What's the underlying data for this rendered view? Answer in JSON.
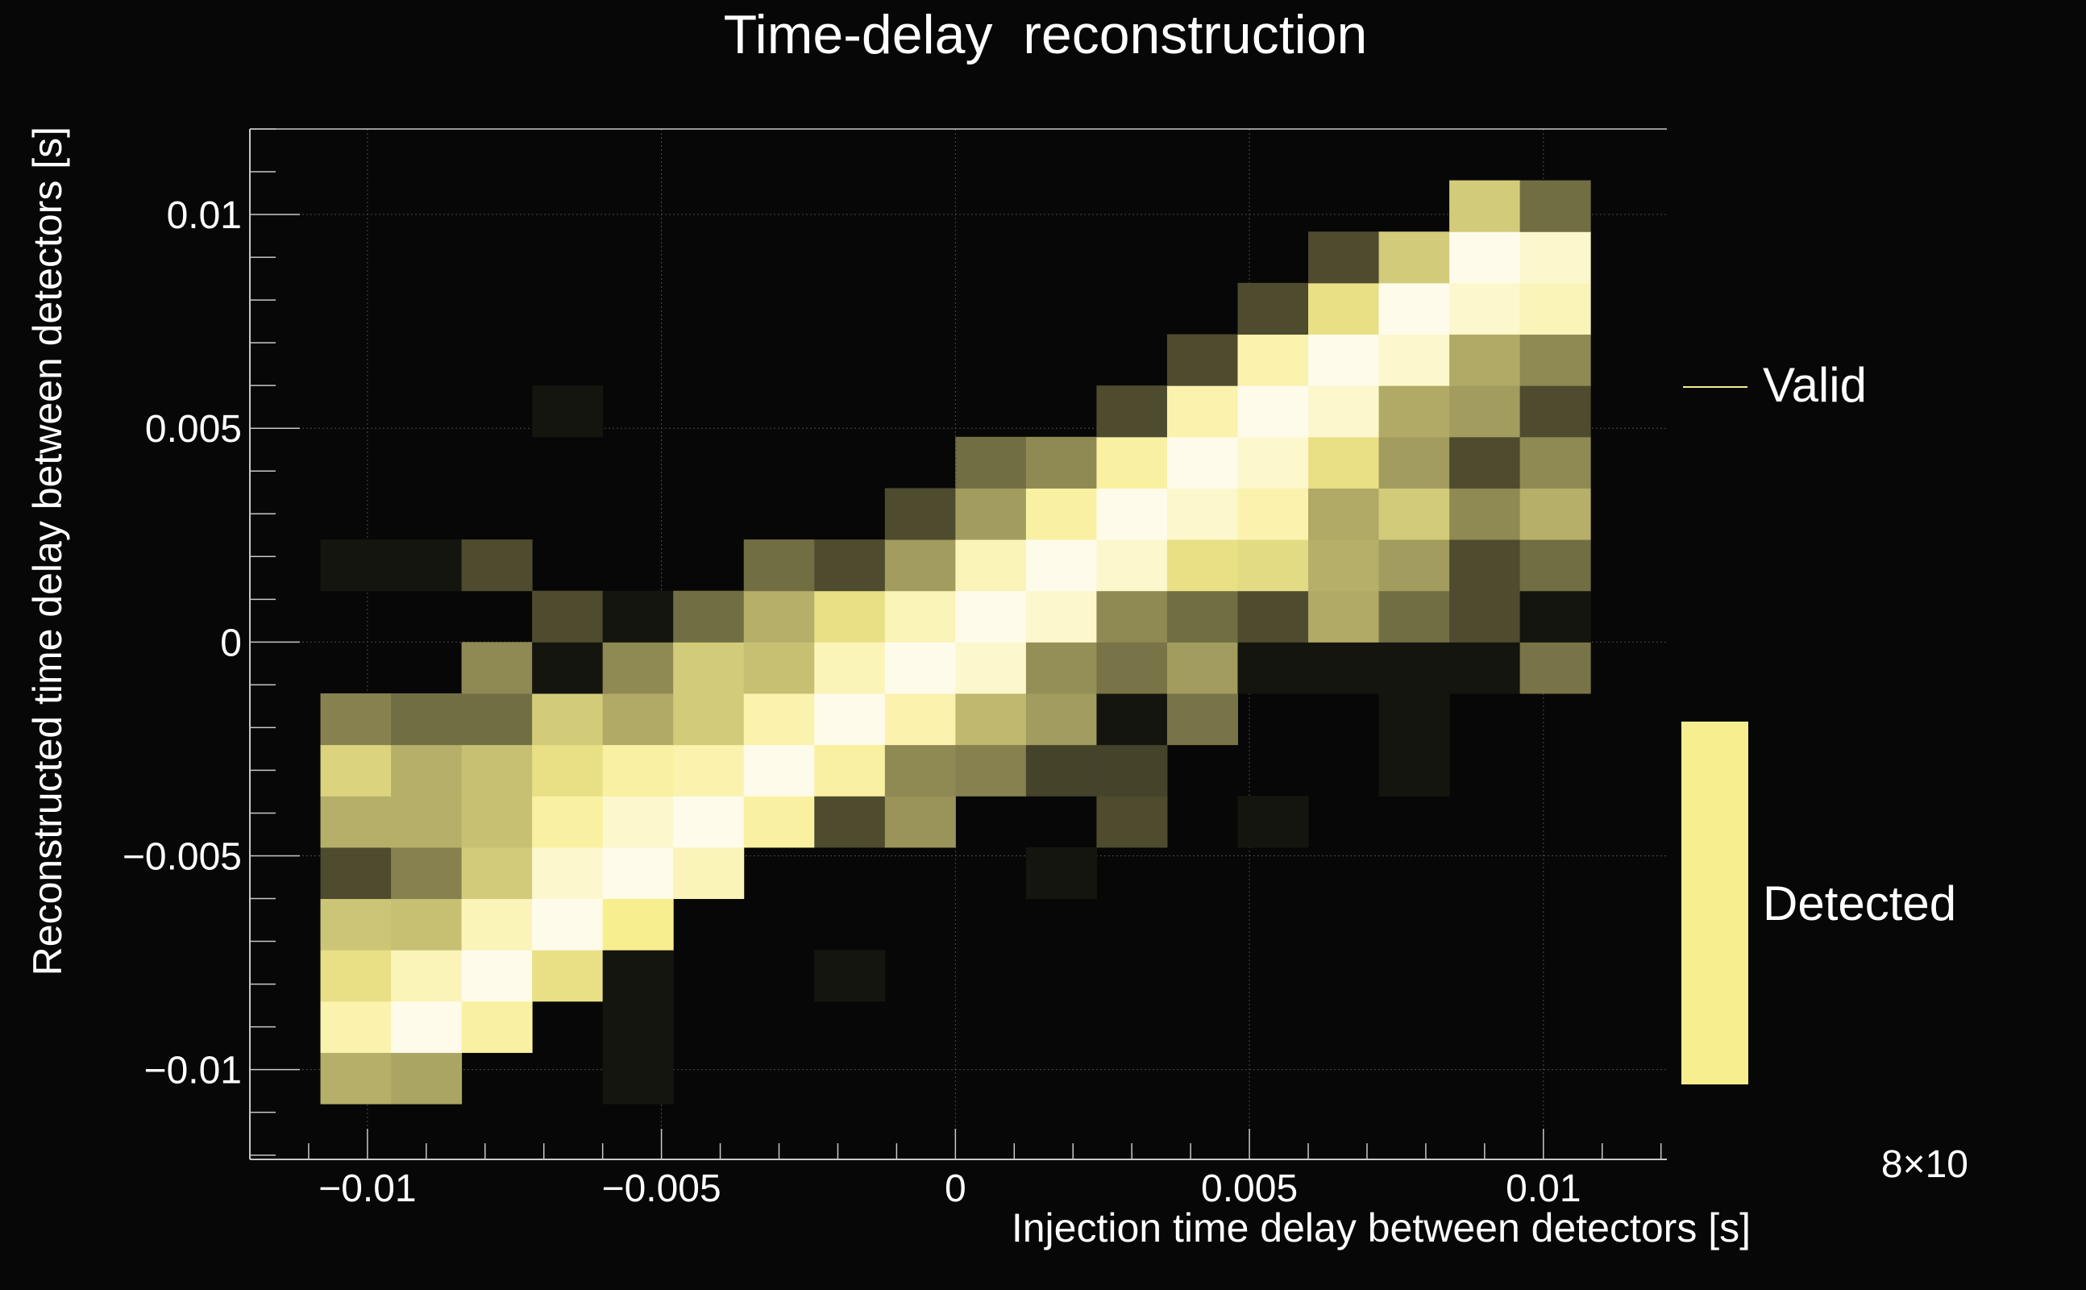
{
  "chart_data": {
    "type": "heatmap",
    "title": "Time-delay  reconstruction",
    "xlabel": "Injection time delay between detectors [s]",
    "ylabel": "Reconstructed time delay between detectors [s]",
    "xlim": [
      -0.012,
      0.0121
    ],
    "ylim": [
      -0.0121,
      0.012
    ],
    "x_ticks": [
      -0.01,
      -0.005,
      0,
      0.005,
      0.01
    ],
    "x_tick_labels": [
      "−0.01",
      "−0.005",
      "0",
      "0.005",
      "0.01"
    ],
    "y_ticks": [
      -0.01,
      -0.005,
      0,
      0.005,
      0.01
    ],
    "y_tick_labels": [
      "−0.01",
      "−0.005",
      "0",
      "0.005",
      "0.01"
    ],
    "grid": true,
    "x_bins": {
      "start": -0.0108,
      "width": 0.0012,
      "count": 18
    },
    "y_bins": {
      "start": -0.0108,
      "width": 0.0012,
      "count": 18
    },
    "z_values_by_row_from_bottom": [
      [
        0.62,
        0.58,
        0,
        0,
        0.05,
        0,
        0,
        0,
        0,
        0,
        0,
        0,
        0,
        0,
        0,
        0,
        0,
        0
      ],
      [
        0.9,
        1.0,
        0.88,
        0,
        0.05,
        0,
        0,
        0,
        0,
        0,
        0,
        0,
        0,
        0,
        0,
        0,
        0,
        0
      ],
      [
        0.8,
        0.92,
        1.0,
        0.8,
        0.05,
        0,
        0,
        0.05,
        0,
        0,
        0,
        0,
        0,
        0,
        0,
        0,
        0,
        0
      ],
      [
        0.7,
        0.68,
        0.92,
        1.0,
        0.85,
        0,
        0,
        0,
        0,
        0,
        0,
        0,
        0,
        0,
        0,
        0,
        0,
        0
      ],
      [
        0.25,
        0.45,
        0.72,
        0.95,
        1.0,
        0.92,
        0,
        0,
        0,
        0,
        0.05,
        0,
        0,
        0,
        0,
        0,
        0,
        0
      ],
      [
        0.62,
        0.62,
        0.68,
        0.88,
        0.95,
        1.0,
        0.88,
        0.25,
        0.52,
        0,
        0,
        0.25,
        0,
        0.05,
        0,
        0,
        0,
        0
      ],
      [
        0.75,
        0.62,
        0.68,
        0.8,
        0.88,
        0.9,
        1.0,
        0.88,
        0.48,
        0.45,
        0.22,
        0.22,
        0,
        0,
        0,
        0.05,
        0,
        0
      ],
      [
        0.45,
        0.38,
        0.38,
        0.72,
        0.6,
        0.72,
        0.9,
        1.0,
        0.9,
        0.65,
        0.55,
        0.05,
        0.4,
        0,
        0,
        0.05,
        0,
        0
      ],
      [
        0,
        0,
        0.48,
        0.05,
        0.48,
        0.72,
        0.68,
        0.92,
        1.0,
        0.95,
        0.5,
        0.4,
        0.55,
        0.05,
        0.05,
        0.05,
        0.05,
        0.4
      ],
      [
        0,
        0,
        0,
        0.25,
        0.05,
        0.38,
        0.62,
        0.8,
        0.92,
        1.0,
        0.95,
        0.48,
        0.38,
        0.25,
        0.6,
        0.38,
        0.25,
        0.05
      ],
      [
        0.05,
        0.05,
        0.25,
        0,
        0,
        0,
        0.38,
        0.25,
        0.55,
        0.92,
        1.0,
        0.95,
        0.8,
        0.78,
        0.62,
        0.55,
        0.25,
        0.38
      ],
      [
        0,
        0,
        0,
        0,
        0,
        0,
        0,
        0,
        0.25,
        0.55,
        0.88,
        1.0,
        0.95,
        0.9,
        0.6,
        0.72,
        0.48,
        0.62
      ],
      [
        0,
        0,
        0,
        0,
        0,
        0,
        0,
        0,
        0,
        0.38,
        0.48,
        0.88,
        1.0,
        0.95,
        0.8,
        0.55,
        0.25,
        0.48
      ],
      [
        0,
        0,
        0,
        0.05,
        0,
        0,
        0,
        0,
        0,
        0,
        0,
        0.25,
        0.9,
        1.0,
        0.95,
        0.6,
        0.55,
        0.25
      ],
      [
        0,
        0,
        0,
        0,
        0,
        0,
        0,
        0,
        0,
        0,
        0,
        0,
        0.25,
        0.9,
        1.0,
        0.95,
        0.6,
        0.48
      ],
      [
        0,
        0,
        0,
        0,
        0,
        0,
        0,
        0,
        0,
        0,
        0,
        0,
        0,
        0.25,
        0.8,
        1.0,
        0.95,
        0.92
      ],
      [
        0,
        0,
        0,
        0,
        0,
        0,
        0,
        0,
        0,
        0,
        0,
        0,
        0,
        0,
        0.25,
        0.72,
        1.0,
        0.95
      ],
      [
        0,
        0,
        0,
        0,
        0,
        0,
        0,
        0,
        0,
        0,
        0,
        0,
        0,
        0,
        0,
        0,
        0.72,
        0.38
      ]
    ],
    "colors": {
      "background": "#070707",
      "low": "#070707",
      "mid": "#f7ee8e",
      "high": "#fffbeb",
      "axis": "#c8c8c8",
      "grid": "#4a4a4a"
    },
    "legend": [
      {
        "label": "Valid",
        "style": "line",
        "color": "#f7ee8e"
      },
      {
        "label": "Detected",
        "style": "box",
        "color": "#f7ee8e"
      }
    ],
    "legend_placement": "right",
    "exponent_label": "8×10"
  }
}
